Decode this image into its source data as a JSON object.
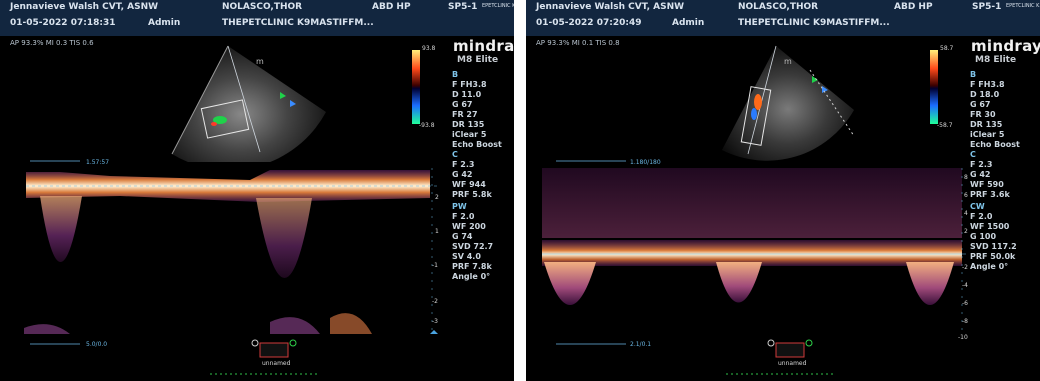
{
  "left": {
    "operator": "Jennavieve Walsh CVT, ASNW",
    "patient": "NOLASCO,THOR",
    "exam": "ABD HP",
    "probe": "SP5-1",
    "probe_sub": "EPETCLINIC K",
    "datetime": "01-05-2022 07:18:31",
    "user": "Admin",
    "clinic": "THEPETCLINIC K9MASTIFFM...",
    "acoustics": "AP 93.3%  MI 0.3  TIS 0.6",
    "brand": "mindray",
    "model": "M8 Elite",
    "scale_top": "93.8",
    "scale_bottom": "-93.8",
    "params_b": [
      "B",
      "F FH3.8",
      "D 11.0",
      "G 67",
      "FR 27",
      "DR 135",
      "iClear 5",
      "Echo Boost"
    ],
    "params_c": [
      "C",
      "F 2.3",
      "G 42",
      "WF 944",
      "PRF 5.8k"
    ],
    "params_pw": [
      "PW",
      "F 2.0",
      "WF 200",
      "G 74",
      "SVD 72.7",
      "SV 4.0",
      "PRF 7.8k",
      "Angle 0°"
    ],
    "time_label": "1.57:57",
    "sweep_label": "5.0/0.0",
    "thumb_label": "unnamed",
    "velocity_ticks": [
      "2",
      "1",
      "-1",
      "-2",
      "-3"
    ]
  },
  "right": {
    "operator": "Jennavieve Walsh CVT, ASNW",
    "patient": "NOLASCO,THOR",
    "exam": "ABD HP",
    "probe": "SP5-1",
    "probe_sub": "EPETCLINIC K",
    "datetime": "01-05-2022 07:20:49",
    "user": "Admin",
    "clinic": "THEPETCLINIC K9MASTIFFM...",
    "acoustics": "AP 93.3%  MI 0.1  TIS 0.8",
    "brand": "mindray",
    "model": "M8 Elite",
    "scale_top": "58.7",
    "scale_bottom": "-58.7",
    "params_b": [
      "B",
      "F FH3.8",
      "D 18.0",
      "G 67",
      "FR 30",
      "DR 135",
      "iClear 5",
      "Echo Boost"
    ],
    "params_c": [
      "C",
      "F 2.3",
      "G 42",
      "WF 590",
      "PRF 3.6k"
    ],
    "params_cw": [
      "CW",
      "F 2.0",
      "WF 1500",
      "G 100",
      "SVD 117.2",
      "PRF 50.0k",
      "Angle 0°"
    ],
    "time_label": "1.180/180",
    "sweep_label": "2.1/0.1",
    "thumb_label": "unnamed",
    "velocity_ticks": [
      "8",
      "6",
      "4",
      "2",
      "-2",
      "-4",
      "-6",
      "-8",
      "-10"
    ]
  },
  "colors": {
    "header_bg": "#12263f",
    "accent_blue": "#6bb7e4",
    "doppler_bright": "#fff2d6",
    "doppler_mid": "#d97a3a",
    "doppler_low": "#5a1e5e"
  }
}
